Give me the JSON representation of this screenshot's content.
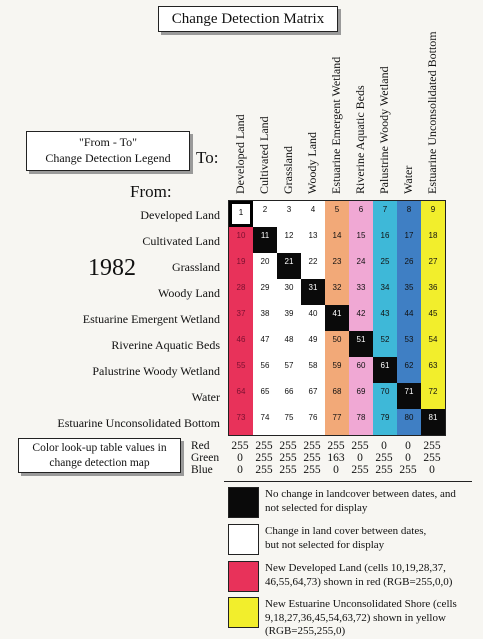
{
  "title": "Change Detection Matrix",
  "legend_title_line1": "\"From - To\"",
  "legend_title_line2": "Change Detection Legend",
  "to_label": "To:",
  "from_label": "From:",
  "year": "1982",
  "classes": [
    "Developed Land",
    "Cultivated Land",
    "Grassland",
    "Woody Land",
    "Estuarine Emergent Wetland",
    "Riverine Aquatic Beds",
    "Palustrine Woody Wetland",
    "Water",
    "Estuarine Unconsolidated Bottom"
  ],
  "column_colors": [
    "#ffffff",
    "#ffffff",
    "#ffffff",
    "#ffffff",
    "#f2a978",
    "#f0a8d4",
    "#3eb8d8",
    "#3f7fc4",
    "#f2ee2c"
  ],
  "highlight_colors": {
    "red": "#e8325a",
    "yellow": "#f2ee2c",
    "no_change": "#0a0a0a"
  },
  "lut_box_line1": "Color look-up table values in",
  "lut_box_line2": "change detection map",
  "rgb": {
    "labels": [
      "Red",
      "Green",
      "Blue"
    ],
    "red": [
      "255",
      "255",
      "255",
      "255",
      "255",
      "255",
      "0",
      "0",
      "255"
    ],
    "green": [
      "0",
      "255",
      "255",
      "255",
      "163",
      "0",
      "255",
      "0",
      "255"
    ],
    "blue": [
      "0",
      "255",
      "255",
      "255",
      "0",
      "255",
      "255",
      "255",
      "0"
    ]
  },
  "legend_items": [
    {
      "line1": "No change in landcover between dates, and",
      "line2": "not selected for display",
      "line3": "",
      "color": "#0a0a0a"
    },
    {
      "line1": "Change in land cover between dates,",
      "line2": "but not selected for display",
      "line3": "",
      "color": "#ffffff"
    },
    {
      "line1": "New Developed Land (cells 10,19,28,37,",
      "line2": "46,55,64,73) shown in red (RGB=255,0,0)",
      "line3": "",
      "color": "#e8325a"
    },
    {
      "line1": "New Estuarine Unconsolidated Shore (cells",
      "line2": "9,18,27,36,45,54,63,72) shown in yellow",
      "line3": "(RGB=255,255,0)",
      "color": "#f2ee2c"
    }
  ]
}
